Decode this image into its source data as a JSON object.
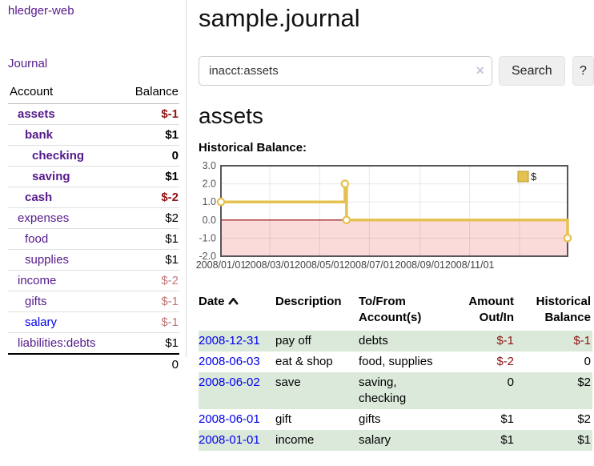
{
  "colors": {
    "link_purple": "#551A8B",
    "link_blue": "#0000EE",
    "negative_strong": "#8E1313",
    "negative_soft": "#C17878",
    "row_shade_green": "#DBE9DB",
    "chart_gold": "#E5C14F",
    "chart_negative_pink": "#FBDADA",
    "chart_zero_line": "#8B0000"
  },
  "sidebar": {
    "app_title": "hledger-web",
    "journal_link": "Journal",
    "accounts": {
      "header_account": "Account",
      "header_balance": "Balance",
      "rows": [
        {
          "name": "assets",
          "balance": "$-1",
          "depth": 1,
          "bold": true,
          "neg": "strong",
          "link": "purple"
        },
        {
          "name": "bank",
          "balance": "$1",
          "depth": 2,
          "bold": true,
          "neg": "none",
          "link": "purple"
        },
        {
          "name": "checking",
          "balance": "0",
          "depth": 3,
          "bold": true,
          "neg": "none",
          "link": "purple"
        },
        {
          "name": "saving",
          "balance": "$1",
          "depth": 3,
          "bold": true,
          "neg": "none",
          "link": "purple"
        },
        {
          "name": "cash",
          "balance": "$-2",
          "depth": 2,
          "bold": true,
          "neg": "strong",
          "link": "purple"
        },
        {
          "name": "expenses",
          "balance": "$2",
          "depth": 1,
          "bold": false,
          "neg": "none",
          "link": "purple"
        },
        {
          "name": "food",
          "balance": "$1",
          "depth": 2,
          "bold": false,
          "neg": "none",
          "link": "purple"
        },
        {
          "name": "supplies",
          "balance": "$1",
          "depth": 2,
          "bold": false,
          "neg": "none",
          "link": "purple"
        },
        {
          "name": "income",
          "balance": "$-2",
          "depth": 1,
          "bold": false,
          "neg": "soft",
          "link": "purple"
        },
        {
          "name": "gifts",
          "balance": "$-1",
          "depth": 2,
          "bold": false,
          "neg": "soft",
          "link": "purple"
        },
        {
          "name": "salary",
          "balance": "$-1",
          "depth": 2,
          "bold": false,
          "neg": "soft",
          "link": "blue"
        },
        {
          "name": "liabilities:debts",
          "balance": "$1",
          "depth": 1,
          "bold": false,
          "neg": "none",
          "link": "purple"
        }
      ],
      "total": "0"
    }
  },
  "main": {
    "title": "sample.journal",
    "search": {
      "value": "inacct:assets",
      "clear_icon": "×",
      "search_button": "Search",
      "help_button": "?"
    },
    "account_heading": "assets",
    "chart_heading": "Historical Balance:"
  },
  "chart_data": {
    "type": "line",
    "step": true,
    "title": "Historical Balance",
    "series": [
      {
        "name": "$",
        "color": "#E5C14F",
        "points": [
          {
            "x": "2008-01-01",
            "y": 1
          },
          {
            "x": "2008-06-01",
            "y": 2
          },
          {
            "x": "2008-06-03",
            "y": 0
          },
          {
            "x": "2008-12-31",
            "y": -1
          }
        ]
      }
    ],
    "xlim": [
      "2008-01-01",
      "2009-03-01"
    ],
    "ylim": [
      -2,
      3
    ],
    "ytick_values": [
      3,
      2,
      1,
      0,
      -1,
      -2
    ],
    "ytick_labels": [
      "3.0",
      "2.0",
      "1.0",
      "0.0",
      "-1.0",
      "-2.0"
    ],
    "xticks": [
      {
        "date": "2008-01-01",
        "label": "2008/01/01"
      },
      {
        "date": "2008-03-01",
        "label": "2008/03/01"
      },
      {
        "date": "2008-05-01",
        "label": "2008/05/01"
      },
      {
        "date": "2008-07-01",
        "label": "2008/07/01"
      },
      {
        "date": "2008-09-01",
        "label": "2008/09/01"
      },
      {
        "date": "2008-11-01",
        "label": "2008/11/01"
      },
      {
        "date": "2009-01-01",
        "label": ""
      }
    ],
    "grid": true,
    "legend": {
      "label": "$",
      "position": "top-right"
    },
    "zero_line_color": "#8B0000",
    "negative_fill_color": "#FBDADA",
    "marker": "open-circle",
    "last_point_at_edge": true
  },
  "register": {
    "columns": [
      {
        "key": "date",
        "label": "Date",
        "align": "left",
        "sort_icon": true
      },
      {
        "key": "description",
        "label": "Description",
        "align": "left",
        "sort_icon": false
      },
      {
        "key": "accounts",
        "label": "To/From Account(s)",
        "align": "left",
        "sort_icon": false
      },
      {
        "key": "amount",
        "label": "Amount Out/In",
        "align": "right",
        "sort_icon": false
      },
      {
        "key": "balance",
        "label": "Historical Balance",
        "align": "right",
        "sort_icon": false
      }
    ],
    "sort_indicator": "ascending",
    "rows": [
      {
        "date": "2008-12-31",
        "description": "pay off",
        "accounts": "debts",
        "amount": "$-1",
        "amount_neg": true,
        "balance": "$-1",
        "balance_neg": true,
        "shaded": true
      },
      {
        "date": "2008-06-03",
        "description": "eat & shop",
        "accounts": "food, supplies",
        "amount": "$-2",
        "amount_neg": true,
        "balance": "0",
        "balance_neg": false,
        "shaded": false
      },
      {
        "date": "2008-06-02",
        "description": "save",
        "accounts": "saving, checking",
        "amount": "0",
        "amount_neg": false,
        "balance": "$2",
        "balance_neg": false,
        "shaded": true
      },
      {
        "date": "2008-06-01",
        "description": "gift",
        "accounts": "gifts",
        "amount": "$1",
        "amount_neg": false,
        "balance": "$2",
        "balance_neg": false,
        "shaded": false
      },
      {
        "date": "2008-01-01",
        "description": "income",
        "accounts": "salary",
        "amount": "$1",
        "amount_neg": false,
        "balance": "$1",
        "balance_neg": false,
        "shaded": true
      }
    ]
  }
}
